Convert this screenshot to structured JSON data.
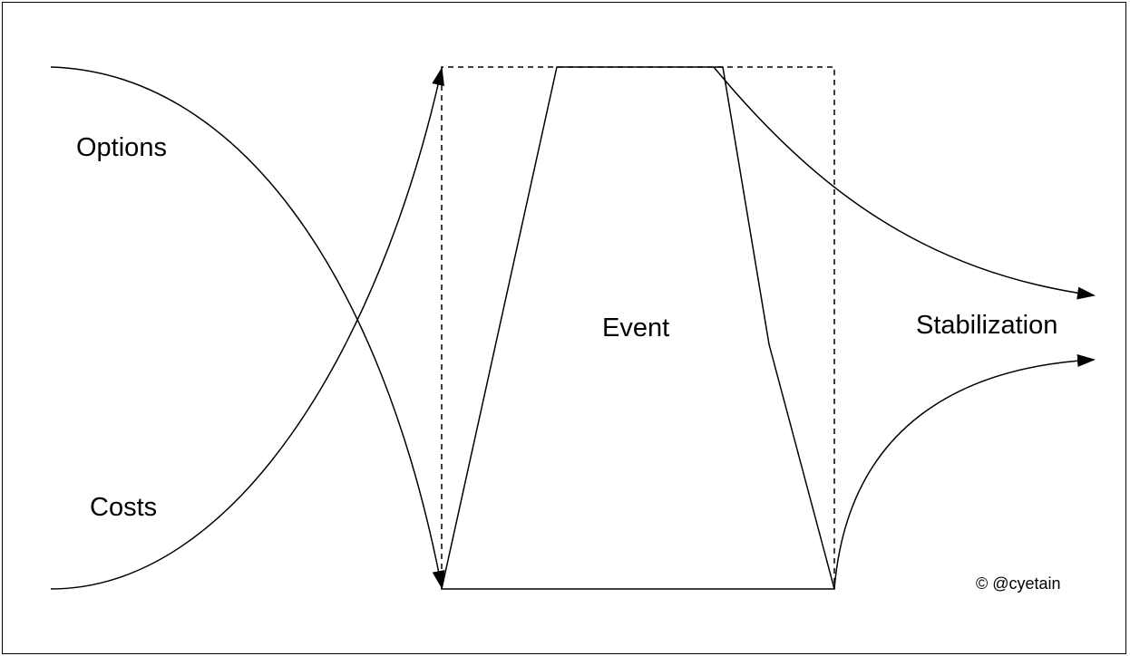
{
  "labels": {
    "options": "Options",
    "costs": "Costs",
    "event": "Event",
    "stabilization": "Stabilization"
  },
  "copyright": "© @cyetain",
  "colors": {
    "stroke": "#000000",
    "background": "#ffffff"
  }
}
